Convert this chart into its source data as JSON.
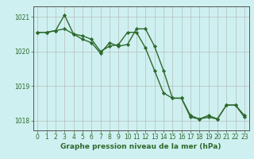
{
  "line1": {
    "x": [
      0,
      1,
      2,
      3,
      4,
      5,
      6,
      7,
      8,
      9,
      10,
      11,
      12,
      13,
      14,
      15,
      16,
      17,
      18,
      19,
      20,
      21,
      22,
      23
    ],
    "y": [
      1020.55,
      1020.55,
      1020.6,
      1020.65,
      1020.5,
      1020.45,
      1020.35,
      1020.0,
      1020.15,
      1020.2,
      1020.55,
      1020.55,
      1020.1,
      1019.45,
      1018.8,
      1018.65,
      1018.65,
      1018.1,
      1018.05,
      1018.15,
      1018.05,
      1018.45,
      1018.45,
      1018.1
    ],
    "color": "#2d6a2d",
    "linewidth": 1.0,
    "marker": "D",
    "markersize": 2.2
  },
  "line2": {
    "x": [
      0,
      1,
      2,
      3,
      4,
      5,
      6,
      7,
      8,
      9,
      10,
      11,
      12,
      13,
      14,
      15,
      16,
      17,
      18,
      19,
      20,
      21,
      22,
      23
    ],
    "y": [
      1020.55,
      1020.55,
      1020.6,
      1021.05,
      1020.5,
      1020.35,
      1020.25,
      1019.95,
      1020.25,
      1020.15,
      1020.2,
      1020.65,
      1020.65,
      1020.15,
      1019.45,
      1018.65,
      1018.65,
      1018.15,
      1018.05,
      1018.1,
      1018.05,
      1018.45,
      1018.45,
      1018.15
    ],
    "color": "#2d6a2d",
    "linewidth": 1.0,
    "marker": "D",
    "markersize": 2.2
  },
  "background_color": "#cff0f0",
  "grid_color": "#b0b0b0",
  "xlim": [
    -0.5,
    23.5
  ],
  "ylim": [
    1017.72,
    1021.3
  ],
  "yticks": [
    1018,
    1019,
    1020,
    1021
  ],
  "xticks": [
    0,
    1,
    2,
    3,
    4,
    5,
    6,
    7,
    8,
    9,
    10,
    11,
    12,
    13,
    14,
    15,
    16,
    17,
    18,
    19,
    20,
    21,
    22,
    23
  ],
  "xlabel": "Graphe pression niveau de la mer (hPa)",
  "xlabel_fontsize": 6.5,
  "tick_fontsize": 5.5,
  "tick_color": "#2d6a2d",
  "label_color": "#2d6a2d",
  "spine_color": "#555555"
}
